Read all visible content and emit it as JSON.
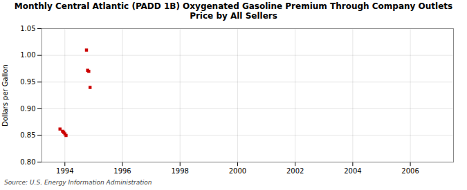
{
  "chart_data": {
    "type": "scatter",
    "title": "Monthly Central Atlantic (PADD 1B) Oxygenated Gasoline Premium Through Company Outlets\nPrice by All Sellers",
    "ylabel": "Dollars per Gallon",
    "source": "Source: U.S. Energy Information Administration",
    "x": [
      1993.83,
      1993.92,
      1993.96,
      1994.0,
      1994.04,
      1994.75,
      1994.79,
      1994.83,
      1994.875
    ],
    "values": [
      0.862,
      0.858,
      0.856,
      0.853,
      0.85,
      1.01,
      0.972,
      0.97,
      0.94
    ],
    "color": "#cc0000",
    "marker": "square",
    "xlim": [
      1993.2,
      2007.5
    ],
    "ylim": [
      0.8,
      1.05
    ],
    "xticks": [
      1994,
      1996,
      1998,
      2000,
      2002,
      2004,
      2006
    ],
    "yticks": [
      {
        "value": 0.8,
        "label": "0.80"
      },
      0.85,
      {
        "value": 0.9,
        "label": "0.90"
      },
      0.95,
      {
        "value": 1.0,
        "label": "1.00"
      },
      1.05
    ],
    "grid": true
  }
}
